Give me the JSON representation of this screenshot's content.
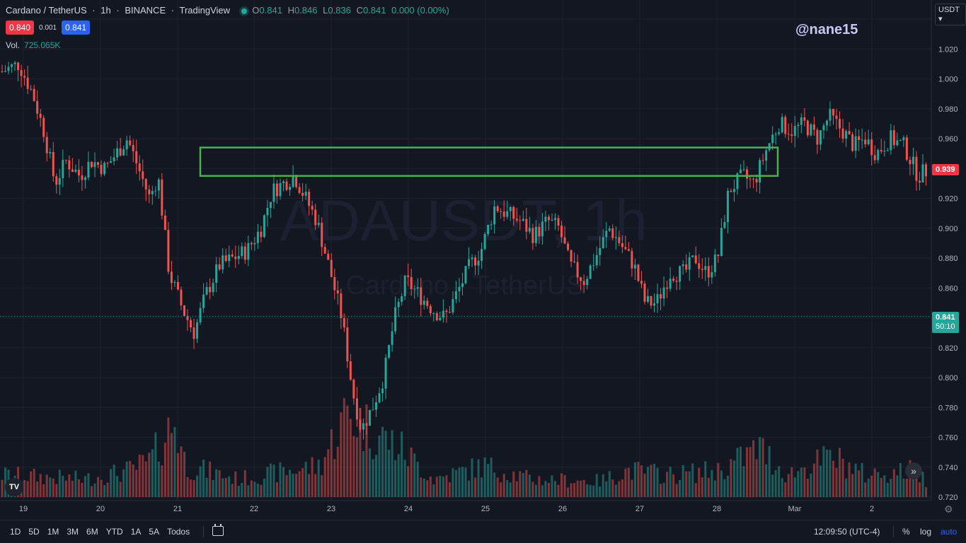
{
  "legend": {
    "symbol": "Cardano / TetherUS",
    "interval": "1h",
    "exchange": "BINANCE",
    "source": "TradingView",
    "open": "0.841",
    "high": "0.846",
    "low": "0.836",
    "close": "0.841",
    "change": "0.000 (0.00%)",
    "sell_price": "0.840",
    "spread": "0.001",
    "buy_price": "0.841",
    "volume_label": "Vol.",
    "volume_value": "725.065K"
  },
  "watermark": {
    "symbol": "ADAUSDT, 1h",
    "name": "Cardano · TetherUS",
    "username": "@nane15"
  },
  "currency": "USDT",
  "price_labels": {
    "upper": "0.939",
    "last": "0.841",
    "countdown": "50:10"
  },
  "colors": {
    "background": "#131722",
    "up": "#26a69a",
    "down": "#ef5350",
    "zone": "#4caf50",
    "grid": "#1f2330"
  },
  "bottom_bar": {
    "ranges": [
      "1D",
      "5D",
      "1M",
      "3M",
      "6M",
      "YTD",
      "1A",
      "5A",
      "Todos"
    ],
    "time": "12:09:50 (UTC-4)",
    "percent": "%",
    "log": "log",
    "auto": "auto"
  },
  "chart_data": {
    "type": "candlestick",
    "title": "Cardano / TetherUS · 1h · BINANCE",
    "ylabel": "",
    "xlabel": "",
    "ylim": [
      0.72,
      1.04
    ],
    "y_ticks": [
      1.04,
      1.02,
      1.0,
      0.98,
      0.96,
      0.94,
      0.92,
      0.9,
      0.88,
      0.86,
      0.84,
      0.82,
      0.8,
      0.78,
      0.76,
      0.74,
      0.72
    ],
    "x_ticks": [
      "19",
      "20",
      "21",
      "22",
      "23",
      "24",
      "25",
      "26",
      "27",
      "28",
      "Mar",
      "2"
    ],
    "zone": {
      "top": 0.954,
      "bottom": 0.935
    },
    "last_price": 0.841,
    "highlighted_price": 0.939,
    "close_path": [
      [
        0,
        1.005
      ],
      [
        0.6,
        1.01
      ],
      [
        1.1,
        0.99
      ],
      [
        1.5,
        0.965
      ],
      [
        1.9,
        0.93
      ],
      [
        2.3,
        0.945
      ],
      [
        2.8,
        0.935
      ],
      [
        3.2,
        0.945
      ],
      [
        3.7,
        0.94
      ],
      [
        4.1,
        0.95
      ],
      [
        4.5,
        0.96
      ],
      [
        5.0,
        0.935
      ],
      [
        5.3,
        0.92
      ],
      [
        5.6,
        0.935
      ],
      [
        6.0,
        0.87
      ],
      [
        6.5,
        0.845
      ],
      [
        6.9,
        0.83
      ],
      [
        7.3,
        0.855
      ],
      [
        7.8,
        0.875
      ],
      [
        8.3,
        0.88
      ],
      [
        8.8,
        0.885
      ],
      [
        9.3,
        0.9
      ],
      [
        9.7,
        0.925
      ],
      [
        10.1,
        0.93
      ],
      [
        10.5,
        0.935
      ],
      [
        10.9,
        0.92
      ],
      [
        11.3,
        0.905
      ],
      [
        11.8,
        0.87
      ],
      [
        12.2,
        0.84
      ],
      [
        12.6,
        0.79
      ],
      [
        12.9,
        0.765
      ],
      [
        13.3,
        0.78
      ],
      [
        13.7,
        0.8
      ],
      [
        14.1,
        0.84
      ],
      [
        14.5,
        0.865
      ],
      [
        15.0,
        0.855
      ],
      [
        15.5,
        0.845
      ],
      [
        15.9,
        0.84
      ],
      [
        16.3,
        0.855
      ],
      [
        16.8,
        0.875
      ],
      [
        17.2,
        0.885
      ],
      [
        17.7,
        0.915
      ],
      [
        18.1,
        0.91
      ],
      [
        18.6,
        0.905
      ],
      [
        19.1,
        0.895
      ],
      [
        19.6,
        0.905
      ],
      [
        20.0,
        0.9
      ],
      [
        20.4,
        0.875
      ],
      [
        20.9,
        0.865
      ],
      [
        21.3,
        0.88
      ],
      [
        21.8,
        0.9
      ],
      [
        22.2,
        0.89
      ],
      [
        22.7,
        0.875
      ],
      [
        23.1,
        0.85
      ],
      [
        23.5,
        0.85
      ],
      [
        24.0,
        0.87
      ],
      [
        24.5,
        0.87
      ],
      [
        24.9,
        0.88
      ],
      [
        25.3,
        0.87
      ],
      [
        25.7,
        0.88
      ],
      [
        26.1,
        0.925
      ],
      [
        26.6,
        0.935
      ],
      [
        27.0,
        0.93
      ],
      [
        27.5,
        0.955
      ],
      [
        27.9,
        0.97
      ],
      [
        28.4,
        0.965
      ],
      [
        28.8,
        0.97
      ],
      [
        29.3,
        0.96
      ],
      [
        29.7,
        0.975
      ],
      [
        30.2,
        0.965
      ],
      [
        30.6,
        0.955
      ],
      [
        31.0,
        0.96
      ],
      [
        31.4,
        0.95
      ],
      [
        31.9,
        0.96
      ],
      [
        32.4,
        0.955
      ],
      [
        32.9,
        0.935
      ],
      [
        33.3,
        0.94
      ]
    ],
    "volume_path": [
      [
        0,
        0.25
      ],
      [
        3,
        0.2
      ],
      [
        4.6,
        0.3
      ],
      [
        5.3,
        0.4
      ],
      [
        6.2,
        0.85
      ],
      [
        6.6,
        0.35
      ],
      [
        8.5,
        0.2
      ],
      [
        10.4,
        0.3
      ],
      [
        11.4,
        0.35
      ],
      [
        12.4,
        0.95
      ],
      [
        13.0,
        0.8
      ],
      [
        14.3,
        0.55
      ],
      [
        15.5,
        0.2
      ],
      [
        17.3,
        0.35
      ],
      [
        19.0,
        0.2
      ],
      [
        21.5,
        0.18
      ],
      [
        22.5,
        0.3
      ],
      [
        24.0,
        0.25
      ],
      [
        25.8,
        0.3
      ],
      [
        27.2,
        0.55
      ],
      [
        28.2,
        0.25
      ],
      [
        29.8,
        0.45
      ],
      [
        31.0,
        0.25
      ],
      [
        32.8,
        0.3
      ],
      [
        33.3,
        0.15
      ]
    ]
  }
}
